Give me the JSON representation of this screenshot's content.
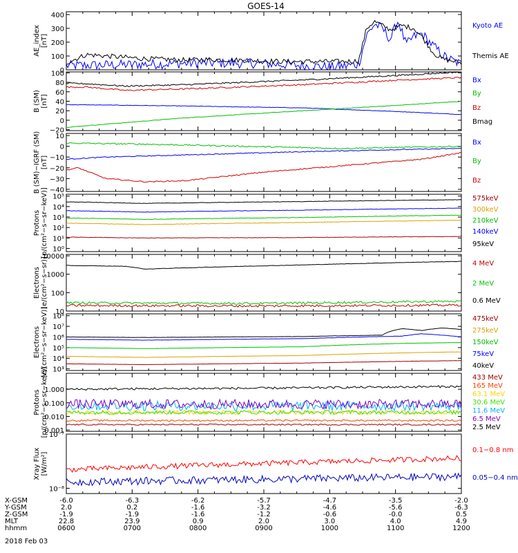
{
  "title": "GOES-14",
  "date": "2018 Feb 03",
  "time_axis": {
    "ticks": [
      "0600",
      "0700",
      "0800",
      "0900",
      "1000",
      "1100",
      "1200"
    ],
    "ephemeris": [
      {
        "label": "X-GSM",
        "values": [
          "-6.0",
          "-6.3",
          "-6.2",
          "-5.7",
          "-4.7",
          "-3.5",
          "-2.0"
        ]
      },
      {
        "label": "Y-GSM",
        "values": [
          "2.0",
          "0.2",
          "-1.6",
          "-3.2",
          "-4.6",
          "-5.6",
          "-6.3"
        ]
      },
      {
        "label": "Z-GSM",
        "values": [
          "-1.9",
          "-1.9",
          "-1.6",
          "-1.2",
          "-0.6",
          "-0.0",
          "0.5"
        ]
      },
      {
        "label": "MLT",
        "values": [
          "22.8",
          "23.9",
          "0.9",
          "2.0",
          "3.0",
          "4.0",
          "4.9"
        ]
      },
      {
        "label": "hhmm",
        "values": [
          "0600",
          "0700",
          "0800",
          "0900",
          "1000",
          "1100",
          "1200"
        ]
      }
    ]
  },
  "chart_data": [
    {
      "type": "line",
      "ylabel": [
        "AE_index",
        "[nT]"
      ],
      "ylim": [
        0,
        420
      ],
      "log": false,
      "yticks": [
        "0",
        "100",
        "200",
        "300",
        "400"
      ],
      "ytick_values": [
        0,
        100,
        200,
        300,
        400
      ],
      "series": [
        {
          "name": "Kyoto AE",
          "color": "#0000ff",
          "x": [
            0,
            0.1,
            0.2,
            0.35,
            0.5,
            0.6,
            0.68,
            0.74,
            0.76,
            0.78,
            0.8,
            0.82,
            0.84,
            0.86,
            0.88,
            0.9,
            0.93,
            0.96,
            1
          ],
          "y": [
            30,
            35,
            40,
            50,
            45,
            30,
            20,
            40,
            250,
            330,
            300,
            220,
            360,
            180,
            240,
            260,
            170,
            90,
            40
          ],
          "noise": 12
        },
        {
          "name": "Themis AE",
          "color": "#000000",
          "x": [
            0,
            0.05,
            0.2,
            0.3,
            0.35,
            0.45,
            0.55,
            0.65,
            0.7,
            0.74,
            0.76,
            0.78,
            0.82,
            0.85,
            0.88,
            0.9,
            0.93,
            0.95,
            1
          ],
          "y": [
            50,
            110,
            80,
            70,
            75,
            70,
            60,
            60,
            60,
            65,
            300,
            350,
            290,
            320,
            300,
            240,
            120,
            80,
            50
          ],
          "noise": 6
        }
      ]
    },
    {
      "type": "line",
      "ylabel": [
        "B (SM)",
        "[nT]"
      ],
      "ylim": [
        -22,
        102
      ],
      "log": false,
      "yticks": [
        "100",
        "80",
        "60",
        "40",
        "20",
        "0",
        "−20"
      ],
      "ytick_values": [
        100,
        80,
        60,
        40,
        20,
        0,
        -20
      ],
      "series": [
        {
          "name": "Bx",
          "color": "#0000ff",
          "x": [
            0,
            0.3,
            0.6,
            0.85,
            1
          ],
          "y": [
            33,
            30,
            26,
            18,
            12
          ],
          "noise": 0.5
        },
        {
          "name": "By",
          "color": "#00c000",
          "x": [
            0,
            0.3,
            0.6,
            0.85,
            1
          ],
          "y": [
            -15,
            5,
            20,
            32,
            40
          ],
          "noise": 0.5
        },
        {
          "name": "Bz",
          "color": "#d00000",
          "x": [
            0,
            0.05,
            0.15,
            0.3,
            0.6,
            0.85,
            1
          ],
          "y": [
            70,
            70,
            63,
            66,
            75,
            85,
            90
          ],
          "noise": 0.5
        },
        {
          "name": "Bmag",
          "color": "#000000",
          "x": [
            0,
            0.05,
            0.15,
            0.3,
            0.6,
            0.85,
            1
          ],
          "y": [
            78,
            77,
            72,
            75,
            85,
            95,
            102
          ],
          "noise": 0.5
        }
      ]
    },
    {
      "type": "line",
      "ylabel": [
        "B (SM)−IGRF (SM)",
        "[nT]"
      ],
      "ylim": [
        -42,
        12
      ],
      "log": false,
      "yticks": [
        "10",
        "0",
        "−10",
        "−20",
        "−30",
        "−40"
      ],
      "ytick_values": [
        10,
        0,
        -10,
        -20,
        -30,
        -40
      ],
      "series": [
        {
          "name": "Bx",
          "color": "#0000ff",
          "x": [
            0,
            0.1,
            0.3,
            0.6,
            0.85,
            1
          ],
          "y": [
            -12,
            -10,
            -8,
            -5,
            -3,
            -2
          ],
          "noise": 0.4
        },
        {
          "name": "By",
          "color": "#00c000",
          "x": [
            0,
            0.2,
            0.45,
            0.7,
            0.85,
            1
          ],
          "y": [
            3,
            2,
            0,
            -2,
            -1,
            0
          ],
          "noise": 0.6
        },
        {
          "name": "Bz",
          "color": "#d00000",
          "x": [
            0,
            0.03,
            0.1,
            0.2,
            0.3,
            0.5,
            0.7,
            0.9,
            1
          ],
          "y": [
            -22,
            -20,
            -30,
            -33,
            -32,
            -24,
            -18,
            -12,
            -6
          ],
          "noise": 0.5
        }
      ]
    },
    {
      "type": "line",
      "ylabel": [
        "Protons",
        "[p/(cm²−s−sr−keV)]"
      ],
      "ylim": [
        0.5,
        150000
      ],
      "log": true,
      "yticks": [
        "10⁰",
        "10¹",
        "10²",
        "10³",
        "10⁴",
        "10⁵"
      ],
      "ytick_values": [
        1,
        10,
        100,
        1000,
        10000,
        100000
      ],
      "series": [
        {
          "name": "575keV",
          "color": "#a00000",
          "x": [
            0,
            0.2,
            0.6,
            1
          ],
          "y": [
            12,
            10,
            11,
            14
          ],
          "noise": 0.02
        },
        {
          "name": "300keV",
          "color": "#e0a000",
          "x": [
            0,
            0.2,
            0.6,
            1
          ],
          "y": [
            260,
            190,
            300,
            500
          ],
          "noise": 0.02
        },
        {
          "name": "210keV",
          "color": "#00c000",
          "x": [
            0,
            0.2,
            0.6,
            1
          ],
          "y": [
            800,
            600,
            900,
            1500
          ],
          "noise": 0.02
        },
        {
          "name": "140keV",
          "color": "#0000ff",
          "x": [
            0,
            0.2,
            0.6,
            1
          ],
          "y": [
            4000,
            3000,
            4500,
            7000
          ],
          "noise": 0.02
        },
        {
          "name": "95keV",
          "color": "#000000",
          "x": [
            0,
            0.2,
            0.6,
            1
          ],
          "y": [
            28000,
            20000,
            30000,
            45000
          ],
          "noise": 0.02
        }
      ]
    },
    {
      "type": "line",
      "ylabel": [
        "Electrons",
        "[e/(cm²−s−sr)]"
      ],
      "ylim": [
        10,
        12000
      ],
      "log": true,
      "yticks": [
        "10",
        "100",
        "1000",
        "10000"
      ],
      "ytick_values": [
        10,
        100,
        1000,
        10000
      ],
      "series": [
        {
          "name": "4 MeV",
          "color": "#c00000",
          "x": [
            0,
            0.5,
            1
          ],
          "y": [
            20,
            19,
            21
          ],
          "noise": 0.06
        },
        {
          "name": "2 MeV",
          "color": "#00c000",
          "x": [
            0,
            0.5,
            1
          ],
          "y": [
            28,
            26,
            34
          ],
          "noise": 0.06
        },
        {
          "name": "0.6 MeV",
          "color": "#000000",
          "x": [
            0,
            0.15,
            0.2,
            0.6,
            1
          ],
          "y": [
            3000,
            2700,
            1900,
            3200,
            5000
          ],
          "noise": 0.01
        }
      ]
    },
    {
      "type": "line",
      "ylabel": [
        "Electrons",
        "[e/(cm²−s−sr−keV)]"
      ],
      "ylim": [
        700,
        150000000
      ],
      "log": true,
      "yticks": [
        "10³",
        "10⁴",
        "10⁵",
        "10⁶",
        "10⁷",
        "10⁸"
      ],
      "ytick_values": [
        1000,
        10000,
        100000,
        1000000,
        10000000,
        100000000
      ],
      "series": [
        {
          "name": "475keV",
          "color": "#a00000",
          "x": [
            0,
            0.2,
            0.6,
            1
          ],
          "y": [
            3000,
            2500,
            3500,
            6000
          ],
          "noise": 0.01
        },
        {
          "name": "275keV",
          "color": "#e0a000",
          "x": [
            0,
            0.2,
            0.6,
            1
          ],
          "y": [
            15000,
            12000,
            18000,
            40000
          ],
          "noise": 0.01
        },
        {
          "name": "150keV",
          "color": "#00c000",
          "x": [
            0,
            0.2,
            0.6,
            0.85,
            1
          ],
          "y": [
            100000,
            80000,
            120000,
            250000,
            300000
          ],
          "noise": 0.01
        },
        {
          "name": "75keV",
          "color": "#0000ff",
          "x": [
            0,
            0.2,
            0.6,
            0.85,
            0.9,
            1
          ],
          "y": [
            600000,
            500000,
            700000,
            1200000,
            2000000,
            1000000
          ],
          "noise": 0.01
        },
        {
          "name": "40keV",
          "color": "#000000",
          "x": [
            0,
            0.2,
            0.6,
            0.8,
            0.85,
            0.9,
            0.95,
            1
          ],
          "y": [
            1000000,
            900000,
            1100000,
            1500000,
            6000000,
            4000000,
            7000000,
            5000000
          ],
          "noise": 0.01
        }
      ]
    },
    {
      "type": "line",
      "ylabel": [
        "Protons",
        "[p/(cm²−s−sr−keV)]"
      ],
      "ylim": [
        0.0008,
        15
      ],
      "log": true,
      "yticks": [
        "0.001",
        "0.010",
        "0.100",
        "1.000"
      ],
      "ytick_values": [
        0.001,
        0.01,
        0.1,
        1
      ],
      "series": [
        {
          "name": "433 MeV",
          "color": "#a00000",
          "x": [
            0,
            1
          ],
          "y": [
            0.0025,
            0.0025
          ],
          "noise": 0.05
        },
        {
          "name": "165 MeV",
          "color": "#ff4000",
          "x": [
            0,
            1
          ],
          "y": [
            0.005,
            0.005
          ],
          "noise": 0.06
        },
        {
          "name": "63.1 MeV",
          "color": "#ffd000",
          "x": [
            0,
            1
          ],
          "y": [
            0.02,
            0.02
          ],
          "noise": 0.15
        },
        {
          "name": "30.6 MeV",
          "color": "#40e000",
          "x": [
            0,
            1
          ],
          "y": [
            0.02,
            0.02
          ],
          "noise": 0.15
        },
        {
          "name": "11.6 MeV",
          "color": "#00b0ff",
          "x": [
            0,
            1
          ],
          "y": [
            0.06,
            0.06
          ],
          "noise": 0.35
        },
        {
          "name": "6.5 MeV",
          "color": "#8000c0",
          "x": [
            0,
            1
          ],
          "y": [
            0.08,
            0.08
          ],
          "noise": 0.35
        },
        {
          "name": "2.5 MeV",
          "color": "#000000",
          "x": [
            0,
            0.5,
            1
          ],
          "y": [
            1,
            1.2,
            1.6
          ],
          "noise": 0.08
        }
      ]
    },
    {
      "type": "line",
      "ylabel": [
        "Xray Flux",
        "[W/m²]"
      ],
      "ylim": [
        8e-09,
        1e-07
      ],
      "log": true,
      "yticks": [
        "10⁻⁸",
        "10⁻⁷"
      ],
      "ytick_values": [
        1e-08,
        1e-07
      ],
      "series": [
        {
          "name": "0.1−0.8 nm",
          "color": "#ff0000",
          "x": [
            0,
            0.3,
            0.6,
            1
          ],
          "y": [
            2.2e-08,
            2.6e-08,
            3e-08,
            3.6e-08
          ],
          "noise": 0.05
        },
        {
          "name": "0.05−0.4 nm",
          "color": "#0000c0",
          "x": [
            0,
            0.3,
            0.6,
            1
          ],
          "y": [
            1.3e-08,
            1.4e-08,
            1.5e-08,
            1.65e-08
          ],
          "noise": 0.07
        }
      ]
    }
  ]
}
